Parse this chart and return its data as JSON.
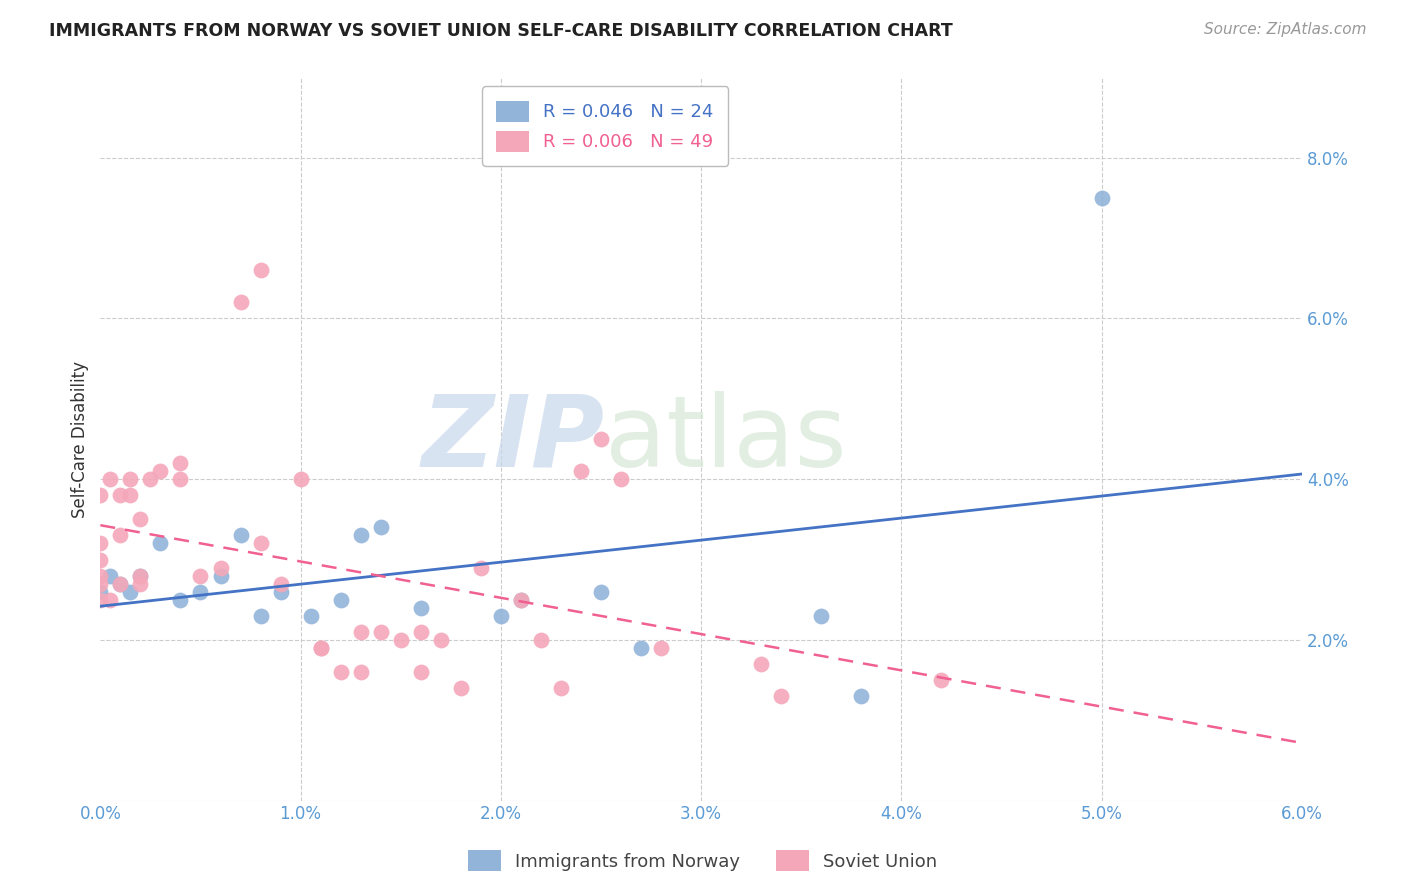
{
  "title": "IMMIGRANTS FROM NORWAY VS SOVIET UNION SELF-CARE DISABILITY CORRELATION CHART",
  "source": "Source: ZipAtlas.com",
  "ylabel": "Self-Care Disability",
  "watermark_zip": "ZIP",
  "watermark_atlas": "atlas",
  "xlim": [
    0.0,
    0.06
  ],
  "ylim": [
    0.0,
    0.09
  ],
  "xticks": [
    0.0,
    0.01,
    0.02,
    0.03,
    0.04,
    0.05,
    0.06
  ],
  "yticks_right": [
    0.02,
    0.04,
    0.06,
    0.08
  ],
  "norway_R": 0.046,
  "norway_N": 24,
  "soviet_R": 0.006,
  "soviet_N": 49,
  "norway_color": "#92B4D9",
  "soviet_color": "#F4A7B9",
  "norway_line_color": "#4472C4",
  "soviet_line_color": "#F06090",
  "tick_color": "#5B9BD5",
  "norway_x": [
    0.0,
    0.0005,
    0.001,
    0.0015,
    0.002,
    0.003,
    0.004,
    0.005,
    0.006,
    0.007,
    0.008,
    0.009,
    0.0105,
    0.012,
    0.013,
    0.014,
    0.016,
    0.02,
    0.021,
    0.025,
    0.027,
    0.036,
    0.038,
    0.05
  ],
  "norway_y": [
    0.026,
    0.028,
    0.027,
    0.026,
    0.028,
    0.032,
    0.025,
    0.026,
    0.028,
    0.033,
    0.023,
    0.026,
    0.023,
    0.025,
    0.033,
    0.034,
    0.024,
    0.023,
    0.025,
    0.026,
    0.019,
    0.023,
    0.013,
    0.075
  ],
  "soviet_x": [
    0.0,
    0.0,
    0.0,
    0.0,
    0.0,
    0.0,
    0.0005,
    0.0005,
    0.001,
    0.001,
    0.001,
    0.0015,
    0.0015,
    0.002,
    0.002,
    0.002,
    0.0025,
    0.003,
    0.004,
    0.004,
    0.005,
    0.006,
    0.007,
    0.008,
    0.008,
    0.009,
    0.01,
    0.011,
    0.011,
    0.012,
    0.013,
    0.013,
    0.014,
    0.015,
    0.016,
    0.016,
    0.017,
    0.018,
    0.019,
    0.021,
    0.022,
    0.023,
    0.024,
    0.025,
    0.026,
    0.028,
    0.033,
    0.034,
    0.042
  ],
  "soviet_y": [
    0.025,
    0.027,
    0.028,
    0.03,
    0.032,
    0.038,
    0.025,
    0.04,
    0.027,
    0.033,
    0.038,
    0.038,
    0.04,
    0.027,
    0.028,
    0.035,
    0.04,
    0.041,
    0.04,
    0.042,
    0.028,
    0.029,
    0.062,
    0.066,
    0.032,
    0.027,
    0.04,
    0.019,
    0.019,
    0.016,
    0.016,
    0.021,
    0.021,
    0.02,
    0.021,
    0.016,
    0.02,
    0.014,
    0.029,
    0.025,
    0.02,
    0.014,
    0.041,
    0.045,
    0.04,
    0.019,
    0.017,
    0.013,
    0.015
  ],
  "legend_bottom_labels": [
    "Immigrants from Norway",
    "Soviet Union"
  ]
}
